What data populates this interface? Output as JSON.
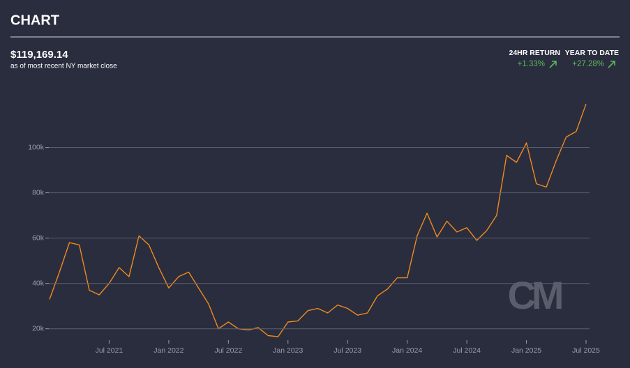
{
  "header": {
    "title": "CHART"
  },
  "summary": {
    "price": "$119,169.14",
    "note": "as of most recent NY market close",
    "returns": [
      {
        "label": "24HR RETURN",
        "value": "+1.33%"
      },
      {
        "label": "YEAR TO DATE",
        "value": "+27.28%"
      }
    ]
  },
  "watermark": "CM",
  "chart_data": {
    "type": "line",
    "color": "#f08a1c",
    "grid": true,
    "x": [
      "2021-01",
      "2021-02",
      "2021-03",
      "2021-04",
      "2021-05",
      "2021-06",
      "2021-07",
      "2021-08",
      "2021-09",
      "2021-10",
      "2021-11",
      "2021-12",
      "2022-01",
      "2022-02",
      "2022-03",
      "2022-04",
      "2022-05",
      "2022-06",
      "2022-07",
      "2022-08",
      "2022-09",
      "2022-10",
      "2022-11",
      "2022-12",
      "2023-01",
      "2023-02",
      "2023-03",
      "2023-04",
      "2023-05",
      "2023-06",
      "2023-07",
      "2023-08",
      "2023-09",
      "2023-10",
      "2023-11",
      "2023-12",
      "2024-01",
      "2024-02",
      "2024-03",
      "2024-04",
      "2024-05",
      "2024-06",
      "2024-07",
      "2024-08",
      "2024-09",
      "2024-10",
      "2024-11",
      "2024-12",
      "2025-01",
      "2025-02",
      "2025-03",
      "2025-04",
      "2025-05",
      "2025-06",
      "2025-07"
    ],
    "values": [
      33000,
      45000,
      58000,
      57000,
      37000,
      35000,
      40000,
      47000,
      43000,
      61000,
      57000,
      47000,
      38000,
      43000,
      45000,
      38000,
      31000,
      20000,
      23000,
      20000,
      19500,
      20500,
      17000,
      16500,
      23000,
      23500,
      28000,
      29000,
      27000,
      30500,
      29000,
      26000,
      27000,
      34500,
      37500,
      42500,
      42500,
      61000,
      71000,
      60500,
      67500,
      62700,
      64600,
      59000,
      63300,
      70000,
      96500,
      93400,
      102000,
      84000,
      82500,
      94200,
      104600,
      107000,
      119169
    ],
    "xlim": [
      "2021-01",
      "2025-07"
    ],
    "xticks": [
      {
        "value": "2021-07",
        "label": "Jul 2021"
      },
      {
        "value": "2022-01",
        "label": "Jan 2022"
      },
      {
        "value": "2022-07",
        "label": "Jul 2022"
      },
      {
        "value": "2023-01",
        "label": "Jan 2023"
      },
      {
        "value": "2023-07",
        "label": "Jul 2023"
      },
      {
        "value": "2024-01",
        "label": "Jan 2024"
      },
      {
        "value": "2024-07",
        "label": "Jul 2024"
      },
      {
        "value": "2025-01",
        "label": "Jan 2025"
      },
      {
        "value": "2025-07",
        "label": "Jul 2025"
      }
    ],
    "ylim": [
      15000,
      122000
    ],
    "yticks": [
      {
        "value": 20000,
        "label": "20k"
      },
      {
        "value": 40000,
        "label": "40k"
      },
      {
        "value": 60000,
        "label": "60k"
      },
      {
        "value": 80000,
        "label": "80k"
      },
      {
        "value": 100000,
        "label": "100k"
      }
    ]
  }
}
